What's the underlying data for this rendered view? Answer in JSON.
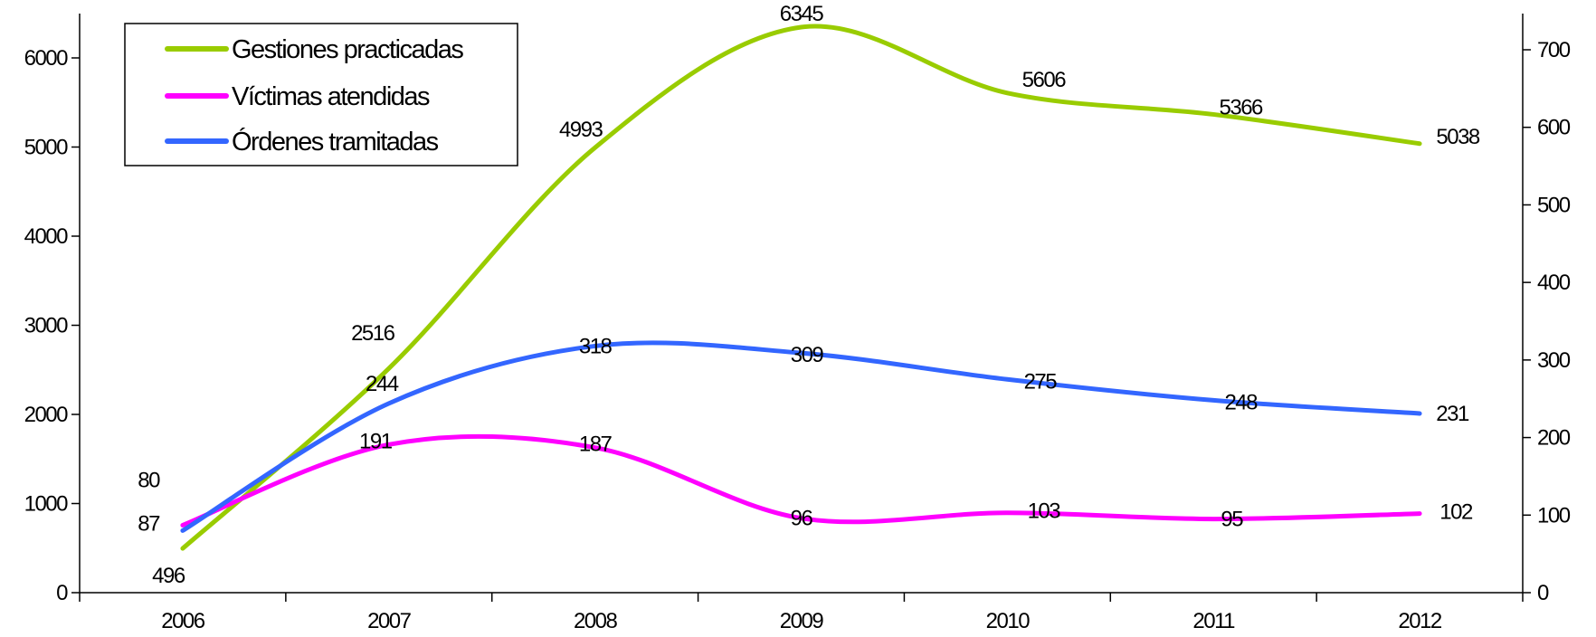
{
  "chart_data": {
    "type": "line",
    "categories": [
      "2006",
      "2007",
      "2008",
      "2009",
      "2010",
      "2011",
      "2012"
    ],
    "series": [
      {
        "name": "Gestiones practicadas",
        "axis": "left",
        "color": "#99cc00",
        "values": [
          496,
          2516,
          4993,
          6345,
          5606,
          5366,
          5038
        ]
      },
      {
        "name": "Víctimas atendidas",
        "axis": "right",
        "color": "#ff00ff",
        "values": [
          87,
          191,
          187,
          96,
          103,
          95,
          102
        ]
      },
      {
        "name": "Órdenes tramitadas",
        "axis": "right",
        "color": "#3366ff",
        "values": [
          80,
          244,
          318,
          309,
          275,
          248,
          231
        ]
      }
    ],
    "y_left": {
      "ylim": [
        0,
        6000
      ],
      "ticks": [
        "0",
        "1000",
        "2000",
        "3000",
        "4000",
        "5000",
        "6000"
      ]
    },
    "y_right": {
      "ylim": [
        0,
        700
      ],
      "ticks": [
        "0",
        "100",
        "200",
        "300",
        "400",
        "500",
        "600",
        "700"
      ]
    },
    "legend_position": "top-left",
    "grid": false,
    "smooth": true
  }
}
